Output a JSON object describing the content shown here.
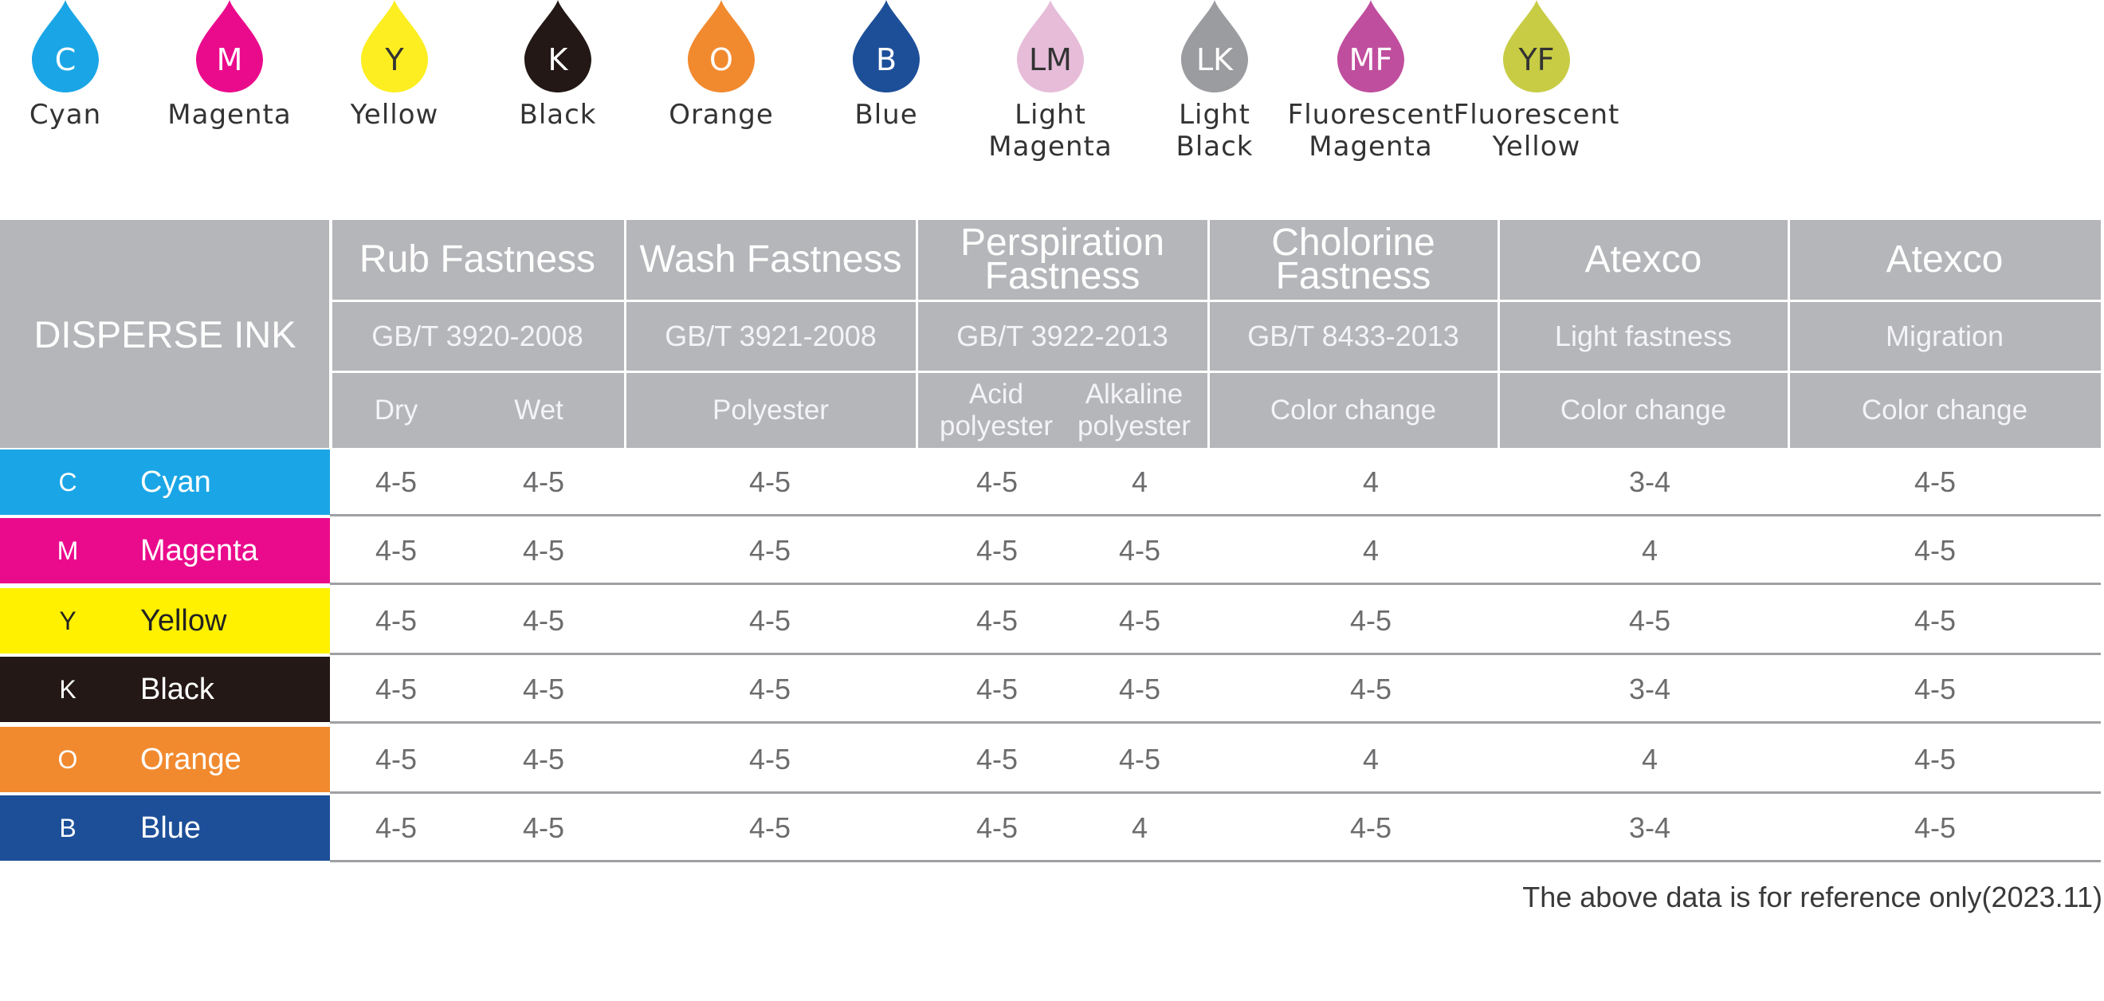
{
  "inks": [
    {
      "code": "C",
      "name": "Cyan",
      "color": "#1aa6e6",
      "text_color": "#ffffff"
    },
    {
      "code": "M",
      "name": "Magenta",
      "color": "#ea0b8c",
      "text_color": "#ffffff"
    },
    {
      "code": "Y",
      "name": "Yellow",
      "color": "#fcee21",
      "text_color": "#333333"
    },
    {
      "code": "K",
      "name": "Black",
      "color": "#231815",
      "text_color": "#ffffff"
    },
    {
      "code": "O",
      "name": "Orange",
      "color": "#f18a2f",
      "text_color": "#ffffff"
    },
    {
      "code": "B",
      "name": "Blue",
      "color": "#1d4f99",
      "text_color": "#ffffff"
    },
    {
      "code": "LM",
      "name": "Light\nMagenta",
      "color": "#e6bcd9",
      "text_color": "#333333"
    },
    {
      "code": "LK",
      "name": "Light\nBlack",
      "color": "#9b9c9f",
      "text_color": "#ffffff"
    },
    {
      "code": "MF",
      "name": "Fluorescent\nMagenta",
      "color": "#c04e9e",
      "text_color": "#ffffff"
    },
    {
      "code": "YF",
      "name": "Fluorescent\nYellow",
      "color": "#c8cc44",
      "text_color": "#333333"
    }
  ],
  "table": {
    "title": "DISPERSE INK",
    "header_color": "#b5b6ba",
    "groups": [
      {
        "title": "Rub Fastness",
        "standard": "GB/T 3920-2008",
        "subs": [
          "Dry",
          "Wet"
        ]
      },
      {
        "title": "Wash Fastness",
        "standard": "GB/T 3921-2008",
        "subs": [
          "Polyester"
        ]
      },
      {
        "title": "Perspiration\nFastness",
        "standard": "GB/T 3922-2013",
        "subs": [
          "Acid\npolyester",
          "Alkaline\npolyester"
        ]
      },
      {
        "title": "Cholorine\nFastness",
        "standard": "GB/T 8433-2013",
        "subs": [
          "Color change"
        ]
      },
      {
        "title": "Atexco",
        "standard": "Light fastness",
        "subs": [
          "Color change"
        ]
      },
      {
        "title": "Atexco",
        "standard": "Migration",
        "subs": [
          "Color change"
        ]
      }
    ],
    "rows": [
      {
        "code": "C",
        "name": "Cyan",
        "color": "#1aa6e6",
        "values": [
          "4-5",
          "4-5",
          "4-5",
          "4-5",
          "4",
          "4",
          "3-4",
          "4-5"
        ]
      },
      {
        "code": "M",
        "name": "Magenta",
        "color": "#ea0b8c",
        "values": [
          "4-5",
          "4-5",
          "4-5",
          "4-5",
          "4-5",
          "4",
          "4",
          "4-5"
        ]
      },
      {
        "code": "Y",
        "name": "Yellow",
        "color": "#fff100",
        "text_color": "#222222",
        "values": [
          "4-5",
          "4-5",
          "4-5",
          "4-5",
          "4-5",
          "4-5",
          "4-5",
          "4-5"
        ]
      },
      {
        "code": "K",
        "name": "Black",
        "color": "#231815",
        "values": [
          "4-5",
          "4-5",
          "4-5",
          "4-5",
          "4-5",
          "4-5",
          "3-4",
          "4-5"
        ]
      },
      {
        "code": "O",
        "name": "Orange",
        "color": "#f18a2f",
        "values": [
          "4-5",
          "4-5",
          "4-5",
          "4-5",
          "4-5",
          "4",
          "4",
          "4-5"
        ]
      },
      {
        "code": "B",
        "name": "Blue",
        "color": "#1d4f99",
        "values": [
          "4-5",
          "4-5",
          "4-5",
          "4-5",
          "4",
          "4-5",
          "3-4",
          "4-5"
        ]
      }
    ]
  },
  "footnote": "The above data is for reference only(2023.11)"
}
